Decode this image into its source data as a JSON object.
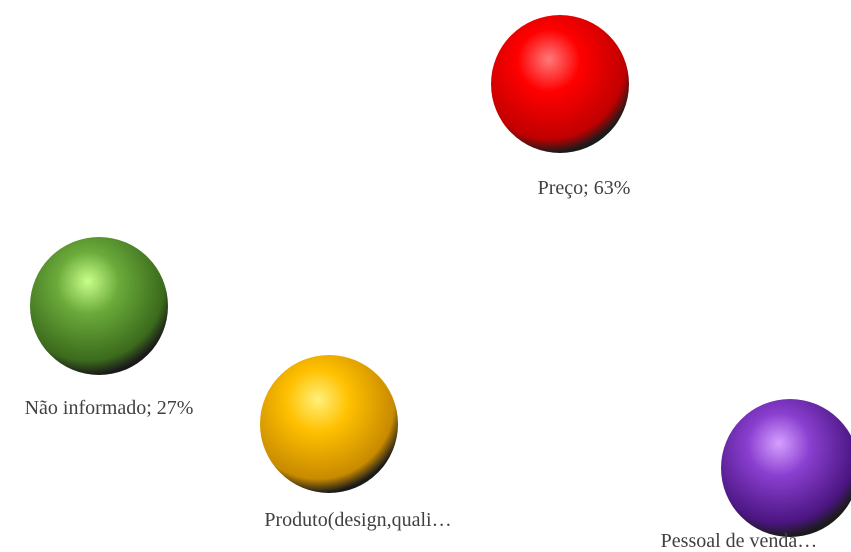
{
  "chart_data": {
    "type": "bubble",
    "title": "",
    "legend": "none",
    "points": [
      {
        "label": "Preço; 63%",
        "color": "#ff0000",
        "shade": "#c00000",
        "highlight": "#ff7a7a"
      },
      {
        "label": "Não informado; 27%",
        "color": "#6aaa3a",
        "shade": "#3b6a1c",
        "highlight": "#c9ff8a"
      },
      {
        "label": "Produto(design,quali…",
        "color": "#ffc000",
        "shade": "#c88a00",
        "highlight": "#fff07a"
      },
      {
        "label": "Pessoal de venda…",
        "color": "#8a3fd0",
        "shade": "#4a1580",
        "highlight": "#d6a0ff"
      }
    ]
  }
}
